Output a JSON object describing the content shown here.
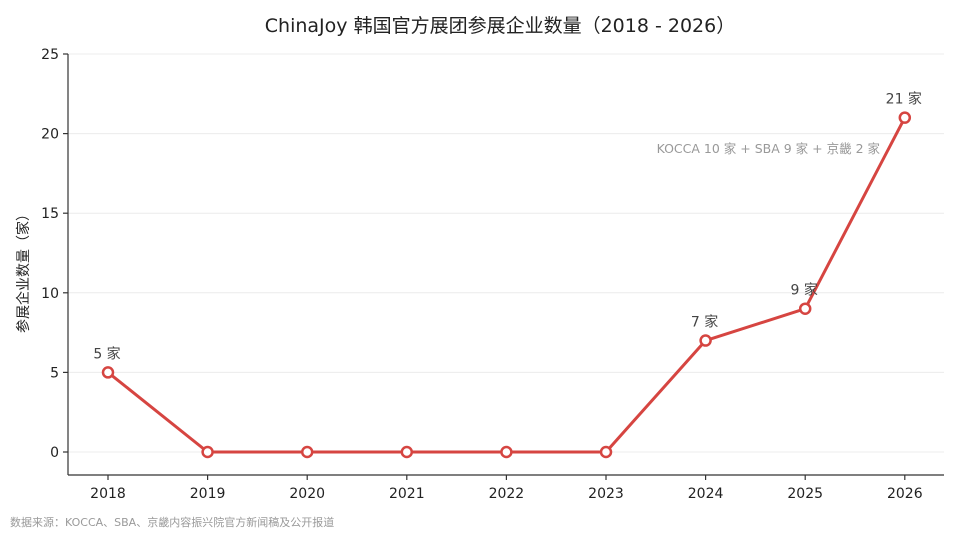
{
  "chart_data": {
    "type": "line",
    "title": "ChinaJoy 韩国官方展团参展企业数量（2018 - 2026）",
    "xlabel": "",
    "ylabel": "参展企业数量（家）",
    "categories": [
      "2018",
      "2019",
      "2020",
      "2021",
      "2022",
      "2023",
      "2024",
      "2025",
      "2026"
    ],
    "series": [
      {
        "values": [
          5,
          0,
          0,
          0,
          0,
          0,
          7,
          9,
          21
        ]
      }
    ],
    "data_labels": [
      {
        "index": 0,
        "text": "5 家"
      },
      {
        "index": 6,
        "text": "7 家"
      },
      {
        "index": 7,
        "text": "9 家"
      },
      {
        "index": 8,
        "text": "21 家"
      }
    ],
    "annotation": {
      "index": 8,
      "text": "KOCCA 10 家 + SBA 9 家 + 京畿 2 家"
    },
    "ylim": [
      0,
      25
    ],
    "yticks": [
      0,
      5,
      10,
      15,
      20,
      25
    ],
    "grid": "horizontal",
    "colors": {
      "line": "#d64541",
      "marker_fill": "#ffffff"
    },
    "source": "数据来源：KOCCA、SBA、京畿内容振兴院官方新闻稿及公开报道"
  }
}
